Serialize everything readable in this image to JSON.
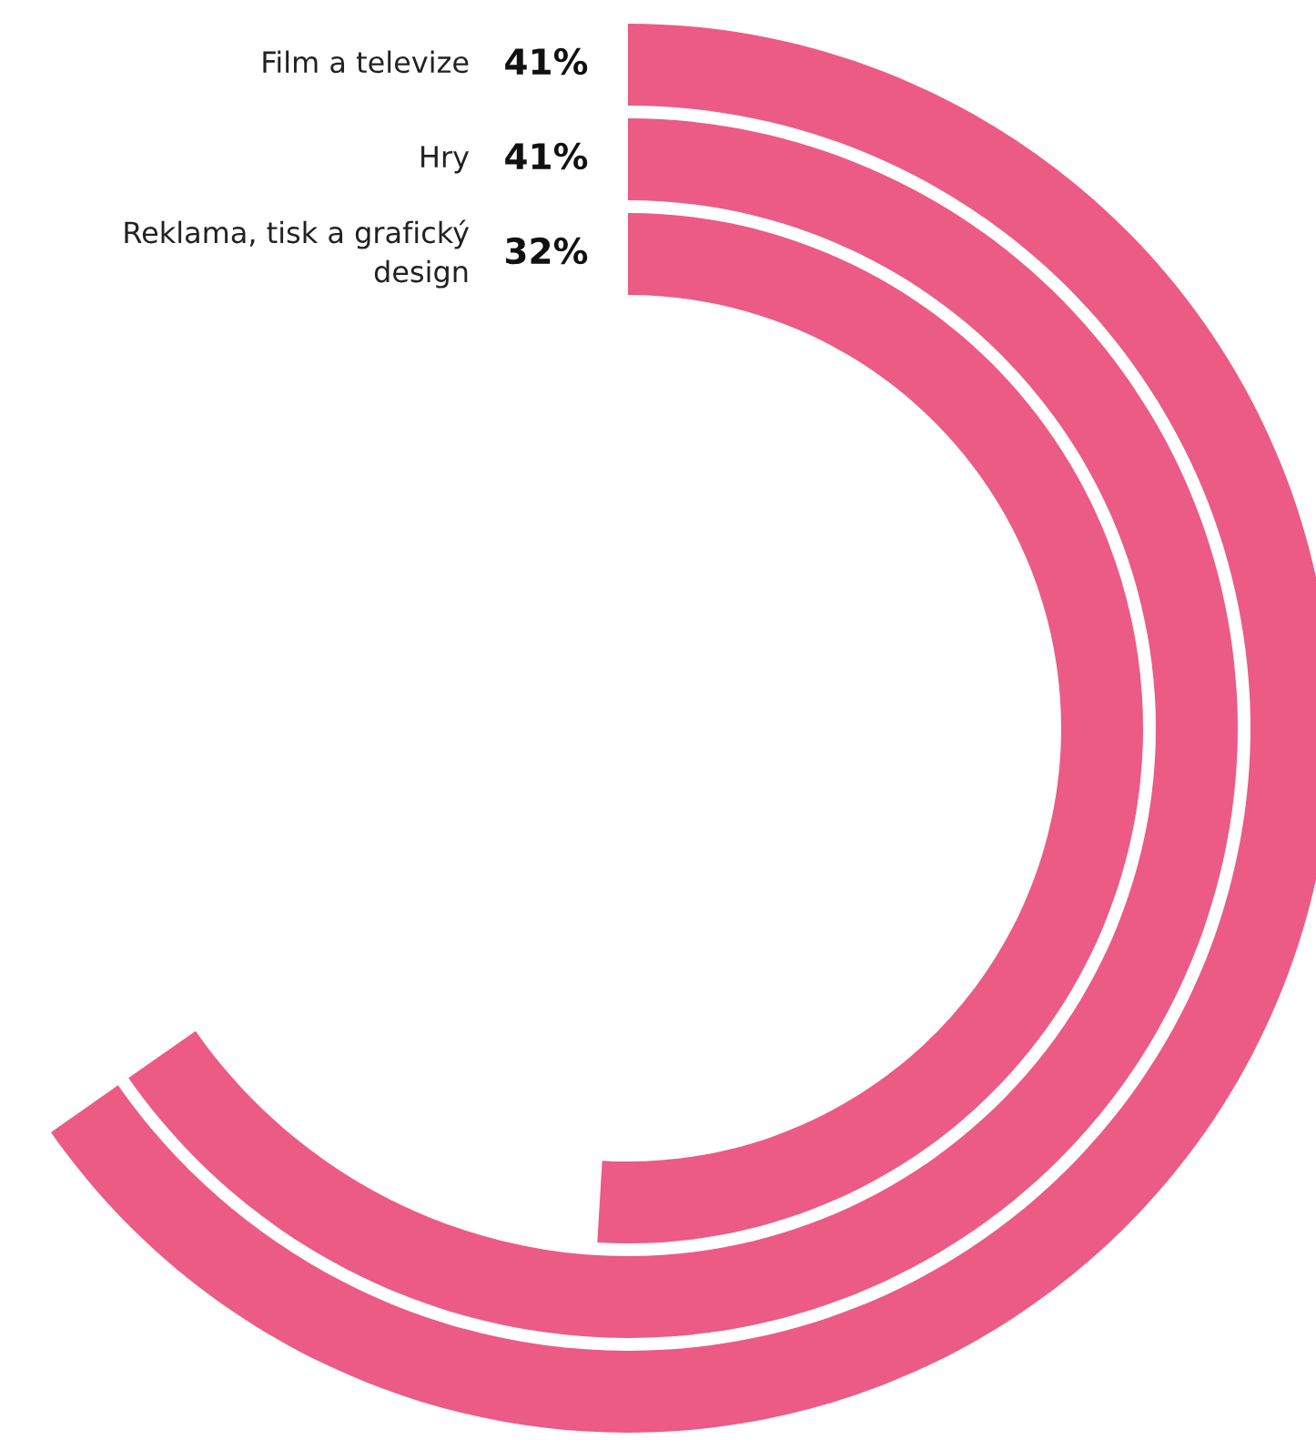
{
  "chart_data": {
    "type": "other",
    "categories": [
      "Film a televize",
      "Hry",
      "Reklama, tisk a grafický design"
    ],
    "values": [
      41,
      41,
      32
    ],
    "value_labels": [
      "41%",
      "41%",
      "32%"
    ],
    "color": "#ec5a86"
  }
}
